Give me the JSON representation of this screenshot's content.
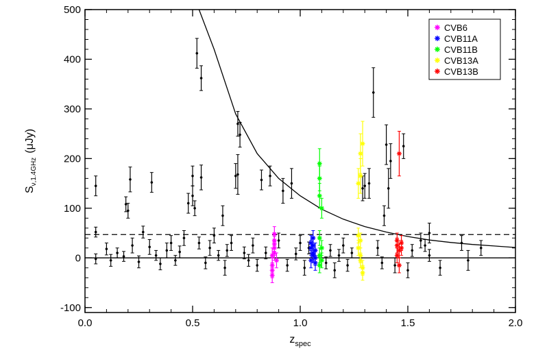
{
  "chart_data": {
    "type": "scatter",
    "xlabel": "z",
    "xlabel_sub": "spec",
    "ylabel": "S",
    "ylabel_sub": "ν,1.4GHz",
    "ylabel_unit": "(μJy)",
    "xlim": [
      0.0,
      2.0
    ],
    "ylim": [
      -110,
      500
    ],
    "x_ticks": [
      "0.0",
      "0.5",
      "1.0",
      "1.5",
      "2.0"
    ],
    "x_tick_values": [
      0.0,
      0.5,
      1.0,
      1.5,
      2.0
    ],
    "y_ticks": [
      "-100",
      "0",
      "100",
      "200",
      "300",
      "400",
      "500"
    ],
    "y_tick_values": [
      -100,
      0,
      100,
      200,
      300,
      400,
      500
    ],
    "grid": false,
    "legend_position": "top-right",
    "reference_lines": [
      {
        "kind": "horizontal",
        "y": 0,
        "style": "solid"
      },
      {
        "kind": "horizontal",
        "y": 47,
        "style": "dashed"
      },
      {
        "kind": "curve",
        "description": "detection limit curve",
        "points": [
          [
            0.53,
            500
          ],
          [
            0.6,
            420
          ],
          [
            0.7,
            290
          ],
          [
            0.8,
            210
          ],
          [
            0.9,
            160
          ],
          [
            1.0,
            125
          ],
          [
            1.1,
            98
          ],
          [
            1.2,
            78
          ],
          [
            1.3,
            63
          ],
          [
            1.4,
            52
          ],
          [
            1.5,
            43
          ],
          [
            1.6,
            36
          ],
          [
            1.7,
            31
          ],
          [
            1.8,
            27
          ],
          [
            1.9,
            24
          ],
          [
            2.0,
            21
          ]
        ]
      }
    ],
    "series": [
      {
        "name": "",
        "color": "#000000",
        "points": [
          [
            0.05,
            145,
            20
          ],
          [
            0.05,
            52,
            10
          ],
          [
            0.05,
            -2,
            10
          ],
          [
            0.1,
            18,
            12
          ],
          [
            0.12,
            -5,
            12
          ],
          [
            0.15,
            10,
            10
          ],
          [
            0.18,
            3,
            10
          ],
          [
            0.19,
            108,
            15
          ],
          [
            0.2,
            95,
            15
          ],
          [
            0.21,
            158,
            25
          ],
          [
            0.22,
            25,
            15
          ],
          [
            0.25,
            -8,
            12
          ],
          [
            0.27,
            52,
            12
          ],
          [
            0.3,
            22,
            15
          ],
          [
            0.31,
            152,
            20
          ],
          [
            0.33,
            5,
            10
          ],
          [
            0.35,
            -12,
            12
          ],
          [
            0.38,
            15,
            15
          ],
          [
            0.4,
            30,
            15
          ],
          [
            0.42,
            -5,
            10
          ],
          [
            0.44,
            12,
            12
          ],
          [
            0.46,
            40,
            15
          ],
          [
            0.48,
            110,
            20
          ],
          [
            0.5,
            165,
            20
          ],
          [
            0.5,
            125,
            20
          ],
          [
            0.51,
            100,
            15
          ],
          [
            0.52,
            412,
            30
          ],
          [
            0.53,
            30,
            12
          ],
          [
            0.54,
            362,
            25
          ],
          [
            0.54,
            162,
            25
          ],
          [
            0.56,
            -10,
            12
          ],
          [
            0.58,
            20,
            15
          ],
          [
            0.6,
            45,
            15
          ],
          [
            0.62,
            5,
            10
          ],
          [
            0.64,
            85,
            20
          ],
          [
            0.65,
            -20,
            15
          ],
          [
            0.66,
            15,
            12
          ],
          [
            0.68,
            30,
            15
          ],
          [
            0.7,
            165,
            25
          ],
          [
            0.71,
            168,
            40
          ],
          [
            0.71,
            270,
            25
          ],
          [
            0.72,
            248,
            25
          ],
          [
            0.74,
            10,
            12
          ],
          [
            0.76,
            -5,
            12
          ],
          [
            0.78,
            25,
            15
          ],
          [
            0.8,
            -15,
            12
          ],
          [
            0.82,
            157,
            20
          ],
          [
            0.84,
            10,
            12
          ],
          [
            0.86,
            165,
            20
          ],
          [
            0.9,
            35,
            15
          ],
          [
            0.92,
            135,
            25
          ],
          [
            0.94,
            -15,
            12
          ],
          [
            0.96,
            150,
            30
          ],
          [
            0.98,
            8,
            12
          ],
          [
            1.0,
            30,
            15
          ],
          [
            1.02,
            -20,
            15
          ],
          [
            1.04,
            20,
            12
          ],
          [
            1.12,
            -10,
            12
          ],
          [
            1.14,
            15,
            12
          ],
          [
            1.16,
            -25,
            15
          ],
          [
            1.18,
            5,
            12
          ],
          [
            1.2,
            25,
            15
          ],
          [
            1.22,
            -15,
            12
          ],
          [
            1.24,
            10,
            10
          ],
          [
            1.29,
            140,
            25
          ],
          [
            1.3,
            145,
            25
          ],
          [
            1.32,
            150,
            30
          ],
          [
            1.34,
            333,
            50
          ],
          [
            1.36,
            20,
            15
          ],
          [
            1.38,
            -10,
            12
          ],
          [
            1.39,
            85,
            20
          ],
          [
            1.4,
            228,
            40
          ],
          [
            1.41,
            140,
            40
          ],
          [
            1.42,
            195,
            35
          ],
          [
            1.44,
            -15,
            15
          ],
          [
            1.48,
            225,
            25
          ],
          [
            1.5,
            -25,
            15
          ],
          [
            1.52,
            15,
            12
          ],
          [
            1.56,
            35,
            15
          ],
          [
            1.58,
            25,
            12
          ],
          [
            1.6,
            50,
            20
          ],
          [
            1.6,
            5,
            12
          ],
          [
            1.65,
            -20,
            15
          ],
          [
            1.75,
            30,
            15
          ],
          [
            1.78,
            -5,
            20
          ],
          [
            1.84,
            20,
            15
          ]
        ]
      },
      {
        "name": "CVB6",
        "color": "#ff00ff",
        "points": [
          [
            0.87,
            -35,
            15
          ],
          [
            0.87,
            -15,
            15
          ],
          [
            0.87,
            5,
            15
          ],
          [
            0.88,
            20,
            15
          ],
          [
            0.88,
            35,
            15
          ],
          [
            0.88,
            48,
            15
          ],
          [
            0.87,
            -25,
            15
          ],
          [
            0.88,
            10,
            15
          ],
          [
            0.89,
            -5,
            15
          ],
          [
            0.88,
            28,
            15
          ]
        ]
      },
      {
        "name": "CVB11A",
        "color": "#0000ff",
        "points": [
          [
            1.05,
            -5,
            15
          ],
          [
            1.06,
            10,
            15
          ],
          [
            1.06,
            25,
            15
          ],
          [
            1.07,
            0,
            15
          ],
          [
            1.07,
            15,
            15
          ],
          [
            1.05,
            30,
            15
          ],
          [
            1.06,
            40,
            15
          ],
          [
            1.07,
            -10,
            15
          ],
          [
            1.06,
            5,
            15
          ],
          [
            1.05,
            20,
            15
          ]
        ]
      },
      {
        "name": "CVB11B",
        "color": "#00ff00",
        "points": [
          [
            1.09,
            190,
            30
          ],
          [
            1.09,
            160,
            25
          ],
          [
            1.09,
            125,
            25
          ],
          [
            1.1,
            100,
            20
          ],
          [
            1.09,
            40,
            15
          ],
          [
            1.1,
            20,
            15
          ],
          [
            1.09,
            5,
            15
          ],
          [
            1.1,
            -5,
            15
          ],
          [
            1.09,
            -15,
            15
          ]
        ]
      },
      {
        "name": "CVB13A",
        "color": "#ffff00",
        "points": [
          [
            1.27,
            150,
            30
          ],
          [
            1.28,
            210,
            40
          ],
          [
            1.29,
            230,
            45
          ],
          [
            1.28,
            165,
            35
          ],
          [
            1.27,
            20,
            15
          ],
          [
            1.28,
            35,
            15
          ],
          [
            1.28,
            5,
            15
          ],
          [
            1.29,
            -20,
            15
          ],
          [
            1.29,
            -30,
            15
          ],
          [
            1.27,
            45,
            15
          ],
          [
            1.28,
            -5,
            15
          ]
        ]
      },
      {
        "name": "CVB13B",
        "color": "#ff0000",
        "points": [
          [
            1.46,
            210,
            45
          ],
          [
            1.45,
            25,
            15
          ],
          [
            1.46,
            15,
            15
          ],
          [
            1.47,
            30,
            15
          ],
          [
            1.45,
            5,
            15
          ],
          [
            1.46,
            -15,
            15
          ],
          [
            1.47,
            20,
            15
          ],
          [
            1.45,
            35,
            15
          ]
        ]
      }
    ],
    "legend": [
      {
        "label": "CVB6",
        "color": "#ff00ff"
      },
      {
        "label": "CVB11A",
        "color": "#0000ff"
      },
      {
        "label": "CVB11B",
        "color": "#00ff00"
      },
      {
        "label": "CVB13A",
        "color": "#ffff00"
      },
      {
        "label": "CVB13B",
        "color": "#ff0000"
      }
    ]
  }
}
